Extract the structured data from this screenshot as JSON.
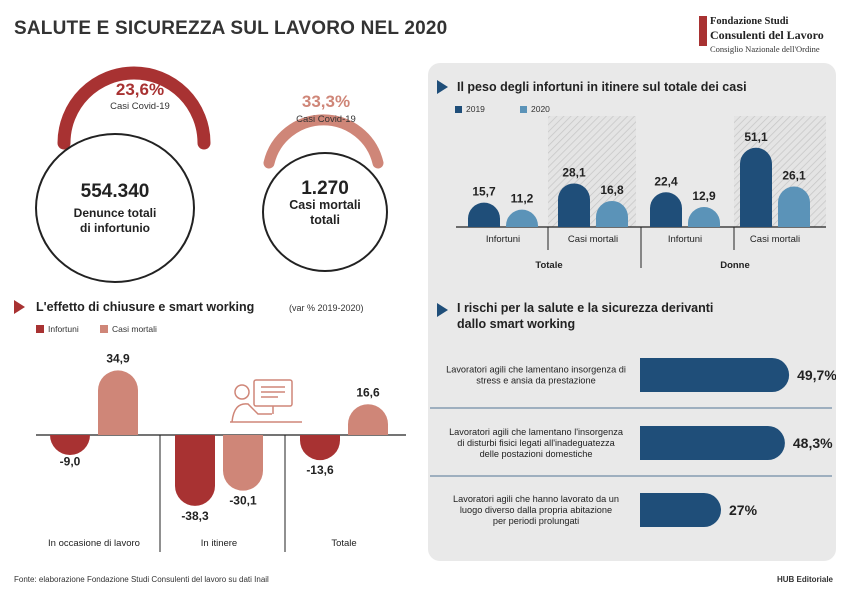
{
  "title": "SALUTE E SICUREZZA SUL LAVORO NEL 2020",
  "logo": {
    "line1": "Fondazione Studi",
    "line2": "Consulenti del Lavoro",
    "line3": "Consiglio Nazionale dell'Ordine"
  },
  "colors": {
    "dark_red": "#a83232",
    "light_red": "#cf8678",
    "dark_blue": "#1f4e79",
    "light_blue": "#5b93b8",
    "panel_bg": "#e9e9e9"
  },
  "covid": [
    {
      "pct": "23,6%",
      "pct_label": "Casi Covid-19",
      "number": "554.340",
      "desc1": "Denunce totali",
      "desc2": "di infortunio",
      "pct_value": 23.6
    },
    {
      "pct": "33,3%",
      "pct_label": "Casi Covid-19",
      "number": "1.270",
      "desc1": "Casi mortali",
      "desc2": "totali",
      "pct_value": 33.3
    }
  ],
  "chart_data": [
    {
      "type": "bar",
      "title": "L'effetto di chiusure e smart working",
      "subtitle": "(var % 2019-2020)",
      "categories": [
        "In occasione di lavoro",
        "In itinere",
        "Totale"
      ],
      "series": [
        {
          "name": "Infortuni",
          "values": [
            -9.0,
            -38.3,
            -13.6
          ],
          "labels": [
            "-9,0",
            "-38,3",
            "-13,6"
          ]
        },
        {
          "name": "Casi mortali",
          "values": [
            34.9,
            -30.1,
            16.6
          ],
          "labels": [
            "34,9",
            "-30,1",
            "16,6"
          ]
        }
      ],
      "ylim": [
        -40,
        40
      ]
    },
    {
      "type": "bar",
      "title": "Il peso degli infortuni in itinere sul totale dei casi",
      "groups": [
        "Totale",
        "Donne"
      ],
      "categories": [
        "Infortuni",
        "Casi mortali",
        "Infortuni",
        "Casi mortali"
      ],
      "series": [
        {
          "name": "2019",
          "values": [
            15.7,
            28.1,
            22.4,
            51.1
          ],
          "labels": [
            "15,7",
            "28,1",
            "22,4",
            "51,1"
          ]
        },
        {
          "name": "2020",
          "values": [
            11.2,
            16.8,
            12.9,
            26.1
          ],
          "labels": [
            "11,2",
            "16,8",
            "12,9",
            "26,1"
          ]
        }
      ],
      "ylim": [
        0,
        60
      ]
    },
    {
      "type": "bar",
      "title_line1": "I rischi per la salute e la sicurezza derivanti",
      "title_line2": "dallo smart working",
      "items": [
        {
          "lines": [
            "Lavoratori agili che lamentano insorgenza di",
            "stress e ansia da prestazione"
          ],
          "value": 49.7,
          "label": "49,7%"
        },
        {
          "lines": [
            "Lavoratori agili che lamentano l'insorgenza",
            "di disturbi fisici legati all'inadeguatezza",
            "delle postazioni domestiche"
          ],
          "value": 48.3,
          "label": "48,3%"
        },
        {
          "lines": [
            "Lavoratori agili che hanno lavorato da un",
            "luogo diverso dalla propria abitazione",
            "per periodi prolungati"
          ],
          "value": 27,
          "label": "27%"
        }
      ],
      "xlim": [
        0,
        50
      ]
    }
  ],
  "footer": {
    "source": "Fonte: elaborazione Fondazione Studi Consulenti del lavoro su dati Inail",
    "credit": "HUB Editoriale"
  }
}
